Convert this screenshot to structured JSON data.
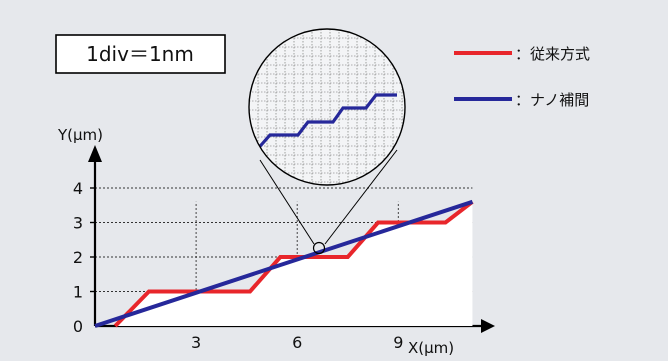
{
  "chart_data": {
    "type": "line",
    "scale_note": "1div＝1nm",
    "xlabel": "X(μm)",
    "ylabel": "Y(μm)",
    "xlim": [
      0,
      11.5
    ],
    "ylim": [
      0,
      4.3
    ],
    "x_ticks": [
      "3",
      "6",
      "9"
    ],
    "y_ticks": [
      "0",
      "1",
      "2",
      "3",
      "4"
    ],
    "legend_position": "top-right",
    "series": [
      {
        "name": "：従来方式",
        "color": "#e8262b",
        "x": [
          0.6,
          1.6,
          3.7,
          4.6,
          5.5,
          6.4,
          7.5,
          8.4,
          9.5,
          10.4,
          11.2
        ],
        "y": [
          0,
          1,
          1,
          1,
          2,
          2,
          2,
          3,
          3,
          3,
          3.6
        ]
      },
      {
        "name": "：ナノ補間",
        "color": "#26289a",
        "x": [
          0,
          11.2
        ],
        "y": [
          0,
          3.6
        ]
      }
    ]
  }
}
